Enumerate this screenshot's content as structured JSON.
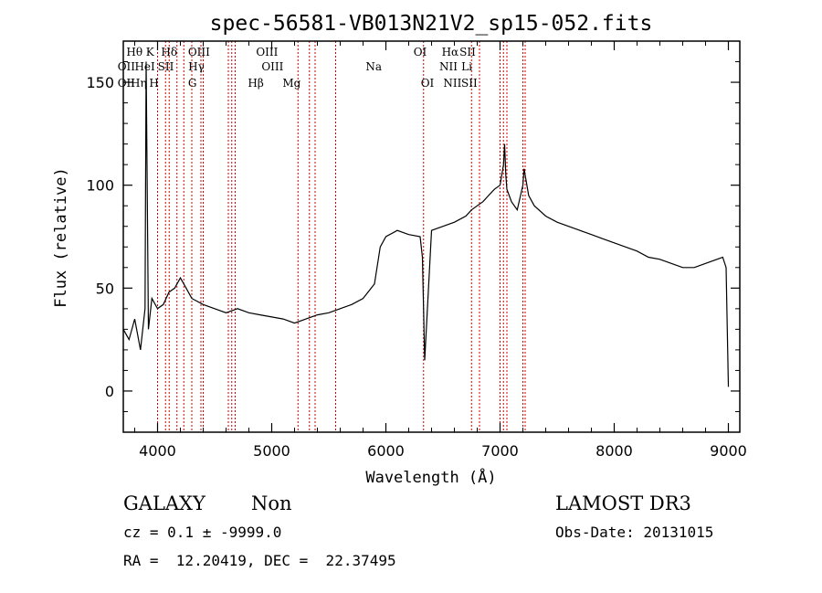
{
  "chart_data": {
    "type": "line",
    "title": "spec-56581-VB013N21V2_sp15-052.fits",
    "xlabel": "Wavelength (Å)",
    "ylabel": "Flux (relative)",
    "xlim": [
      3700,
      9100
    ],
    "ylim": [
      -20,
      170
    ],
    "xticks": [
      4000,
      5000,
      6000,
      7000,
      8000,
      9000
    ],
    "yticks": [
      0,
      50,
      100,
      150
    ],
    "grid": false,
    "line_color": "#000000",
    "marker_color": "#cc0000",
    "series": [
      {
        "x": [
          3700,
          3750,
          3800,
          3850,
          3890,
          3900,
          3920,
          3950,
          4000,
          4050,
          4100,
          4150,
          4200,
          4250,
          4300,
          4400,
          4500,
          4600,
          4700,
          4800,
          4900,
          5000,
          5100,
          5200,
          5300,
          5400,
          5500,
          5600,
          5700,
          5800,
          5900,
          5950,
          6000,
          6100,
          6200,
          6300,
          6320,
          6340,
          6400,
          6500,
          6600,
          6700,
          6750,
          6800,
          6850,
          6900,
          6950,
          7000,
          7030,
          7040,
          7050,
          7060,
          7100,
          7150,
          7200,
          7210,
          7250,
          7300,
          7400,
          7500,
          7600,
          7700,
          7800,
          7900,
          8000,
          8100,
          8200,
          8300,
          8400,
          8500,
          8600,
          8700,
          8800,
          8900,
          8950,
          8980,
          9000
        ],
        "y": [
          30,
          25,
          35,
          20,
          40,
          160,
          30,
          45,
          40,
          42,
          48,
          50,
          55,
          50,
          45,
          42,
          40,
          38,
          40,
          38,
          37,
          36,
          35,
          33,
          35,
          37,
          38,
          40,
          42,
          45,
          52,
          70,
          75,
          78,
          76,
          75,
          65,
          15,
          78,
          80,
          82,
          85,
          88,
          90,
          92,
          95,
          98,
          100,
          110,
          120,
          105,
          98,
          92,
          88,
          100,
          108,
          95,
          90,
          85,
          82,
          80,
          78,
          76,
          74,
          72,
          70,
          68,
          65,
          64,
          62,
          60,
          60,
          62,
          64,
          65,
          60,
          2
        ]
      }
    ],
    "lines": [
      {
        "label": "OII",
        "x": 3727,
        "row": 3
      },
      {
        "label": "Hθ",
        "x": 3798,
        "row": 1
      },
      {
        "label": "OII",
        "x": 3727,
        "row": 2
      },
      {
        "label": "Hη",
        "x": 3835,
        "row": 3
      },
      {
        "label": "HeI",
        "x": 3889,
        "row": 2
      },
      {
        "label": "K",
        "x": 3934,
        "row": 1
      },
      {
        "label": "H",
        "x": 3969,
        "row": 3
      },
      {
        "label": "Hδ",
        "x": 4102,
        "row": 1
      },
      {
        "label": "SII",
        "x": 4072,
        "row": 2
      },
      {
        "label": "OIII",
        "x": 4363,
        "row": 1
      },
      {
        "label": "Hγ",
        "x": 4340,
        "row": 2
      },
      {
        "label": "G",
        "x": 4305,
        "row": 3
      },
      {
        "label": "Hβ",
        "x": 4861,
        "row": 3
      },
      {
        "label": "OIII",
        "x": 4959,
        "row": 1
      },
      {
        "label": "OIII",
        "x": 5007,
        "row": 2
      },
      {
        "label": "Mg",
        "x": 5175,
        "row": 3
      },
      {
        "label": "Na",
        "x": 5894,
        "row": 2
      },
      {
        "label": "OI",
        "x": 6300,
        "row": 1
      },
      {
        "label": "OI",
        "x": 6364,
        "row": 3
      },
      {
        "label": "Hα",
        "x": 6563,
        "row": 1
      },
      {
        "label": "NII",
        "x": 6548,
        "row": 2
      },
      {
        "label": "NII",
        "x": 6583,
        "row": 3
      },
      {
        "label": "SII",
        "x": 6716,
        "row": 1
      },
      {
        "label": "Li",
        "x": 6708,
        "row": 2
      },
      {
        "label": "SII",
        "x": 6731,
        "row": 3
      }
    ],
    "marker_x": [
      4000,
      4070,
      4102,
      4170,
      4230,
      4300,
      4380,
      4400,
      4620,
      4650,
      4680,
      5230,
      5330,
      5380,
      5560,
      6330,
      6750,
      6820,
      7000,
      7030,
      7060,
      7200,
      7220
    ]
  },
  "footer": {
    "object_class": "GALAXY",
    "subclass": "Non",
    "survey": "LAMOST DR3",
    "cz": "cz = 0.1 ± -9999.0",
    "obs_date": "Obs-Date: 20131015",
    "coords": "RA =  12.20419, DEC =  22.37495"
  }
}
